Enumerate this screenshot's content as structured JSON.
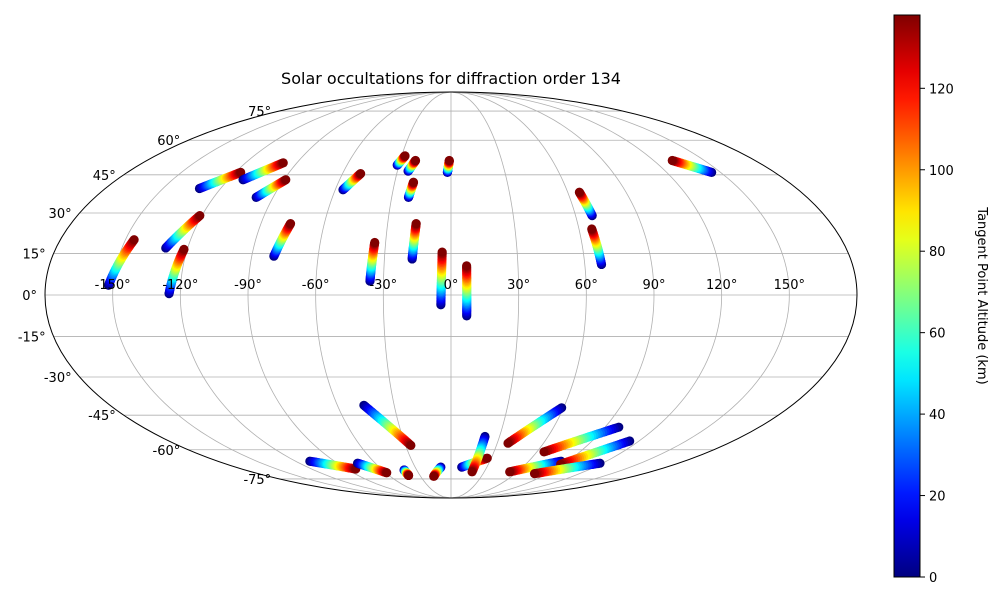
{
  "chart_data": {
    "type": "scatter",
    "projection": "mollweide",
    "title": "Solar occultations for diffraction order 134",
    "grid": true,
    "x_ticks": [
      "-150°",
      "-120°",
      "-90°",
      "-60°",
      "-30°",
      "0°",
      "30°",
      "60°",
      "90°",
      "120°",
      "150°"
    ],
    "x_tick_values": [
      -150,
      -120,
      -90,
      -60,
      -30,
      0,
      30,
      60,
      90,
      120,
      150
    ],
    "y_ticks": [
      "75°",
      "60°",
      "45°",
      "30°",
      "15°",
      "0°",
      "-15°",
      "-30°",
      "-45°",
      "-60°",
      "-75°"
    ],
    "y_tick_values": [
      75,
      60,
      45,
      30,
      15,
      0,
      -15,
      -30,
      -45,
      -60,
      -75
    ],
    "colorbar": {
      "label": "Tangent Point Altitude (km)",
      "range": [
        0,
        138
      ],
      "ticks": [
        "0",
        "20",
        "40",
        "60",
        "80",
        "100",
        "120"
      ],
      "tick_values": [
        0,
        20,
        40,
        60,
        80,
        100,
        120
      ],
      "colormap": "jet"
    },
    "tracks": [
      {
        "start": [
          -152.0,
          3.5
        ],
        "end": [
          -146.0,
          20.0
        ],
        "reverse": false
      },
      {
        "start": [
          -130.0,
          17.0
        ],
        "end": [
          -121.0,
          29.0
        ],
        "reverse": false
      },
      {
        "start": [
          -125.0,
          0.5
        ],
        "end": [
          -121.5,
          16.5
        ],
        "reverse": false
      },
      {
        "start": [
          -131.0,
          39.5
        ],
        "end": [
          -117.0,
          46.0
        ],
        "reverse": false
      },
      {
        "start": [
          -112.0,
          43.0
        ],
        "end": [
          -98.0,
          50.0
        ],
        "reverse": false
      },
      {
        "start": [
          -98.5,
          36.0
        ],
        "end": [
          -89.0,
          43.0
        ],
        "reverse": false
      },
      {
        "start": [
          -80.0,
          14.0
        ],
        "end": [
          -76.0,
          26.0
        ],
        "reverse": false
      },
      {
        "start": [
          -56.0,
          39.0
        ],
        "end": [
          -50.0,
          45.5
        ],
        "reverse": false
      },
      {
        "start": [
          -36.0,
          5.0
        ],
        "end": [
          -35.0,
          19.0
        ],
        "reverse": false
      },
      {
        "start": [
          -31.0,
          49.0
        ],
        "end": [
          -28.0,
          53.0
        ],
        "reverse": false
      },
      {
        "start": [
          -24.0,
          46.5
        ],
        "end": [
          -21.0,
          51.0
        ],
        "reverse": false
      },
      {
        "start": [
          -21.5,
          36.0
        ],
        "end": [
          -20.0,
          42.0
        ],
        "reverse": false
      },
      {
        "start": [
          -17.5,
          13.0
        ],
        "end": [
          -16.5,
          26.0
        ],
        "reverse": false
      },
      {
        "start": [
          -4.5,
          -3.5
        ],
        "end": [
          -4.0,
          15.5
        ],
        "reverse": false
      },
      {
        "start": [
          -2.0,
          46.0
        ],
        "end": [
          -1.0,
          51.0
        ],
        "reverse": false
      },
      {
        "start": [
          7.0,
          -7.5
        ],
        "end": [
          7.0,
          10.5
        ],
        "reverse": false
      },
      {
        "start": [
          68.0,
          29.0
        ],
        "end": [
          66.0,
          38.0
        ],
        "reverse": false
      },
      {
        "start": [
          67.5,
          11.0
        ],
        "end": [
          66.0,
          24.0
        ],
        "reverse": false
      },
      {
        "start": [
          145.0,
          46.0
        ],
        "end": [
          131.0,
          51.0
        ],
        "reverse": false
      },
      {
        "start": [
          -46.0,
          -41.0
        ],
        "end": [
          -26.5,
          -58.0
        ],
        "reverse": false
      },
      {
        "start": [
          -109.0,
          -65.5
        ],
        "end": [
          -82.0,
          -69.5
        ],
        "reverse": false
      },
      {
        "start": [
          -74.0,
          -66.5
        ],
        "end": [
          -59.0,
          -71.5
        ],
        "reverse": false
      },
      {
        "start": [
          -41.0,
          -70.0
        ],
        "end": [
          -41.0,
          -73.0
        ],
        "reverse": false
      },
      {
        "start": [
          -8.5,
          -68.5
        ],
        "end": [
          -17.0,
          -73.5
        ],
        "reverse": false
      },
      {
        "start": [
          9.0,
          -68.5
        ],
        "end": [
          27.0,
          -64.0
        ],
        "reverse": false
      },
      {
        "start": [
          21.0,
          -54.0
        ],
        "end": [
          19.0,
          -71.0
        ],
        "reverse": false
      },
      {
        "start": [
          59.0,
          -42.0
        ],
        "end": [
          37.0,
          -57.0
        ],
        "reverse": false
      },
      {
        "start": [
          85.0,
          -65.5
        ],
        "end": [
          53.0,
          -71.0
        ],
        "reverse": false
      },
      {
        "start": [
          98.0,
          -50.0
        ],
        "end": [
          65.0,
          -61.0
        ],
        "reverse": false
      },
      {
        "start": [
          114.0,
          -56.0
        ],
        "end": [
          88.0,
          -67.0
        ],
        "reverse": false
      },
      {
        "start": [
          118.0,
          -66.5
        ],
        "end": [
          78.0,
          -72.0
        ],
        "reverse": false
      }
    ]
  }
}
